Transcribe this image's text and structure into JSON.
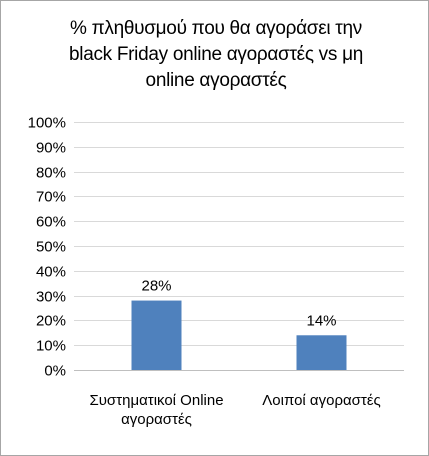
{
  "chart_data": {
    "type": "bar",
    "title_lines": [
      "% πληθυσμού που θα αγοράσει την",
      "black Friday online αγοραστές vs μη",
      "online αγοραστές"
    ],
    "categories": [
      [
        "Συστηματικοί Online",
        "αγοραστές"
      ],
      [
        "Λοιποί αγοραστές"
      ]
    ],
    "values": [
      28,
      14
    ],
    "data_labels": [
      "28%",
      "14%"
    ],
    "ylim": [
      0,
      100
    ],
    "yticks": [
      0,
      10,
      20,
      30,
      40,
      50,
      60,
      70,
      80,
      90,
      100
    ],
    "ytick_labels": [
      "0%",
      "10%",
      "20%",
      "30%",
      "40%",
      "50%",
      "60%",
      "70%",
      "80%",
      "90%",
      "100%"
    ],
    "grid": true,
    "bar_color": "#4f81bd",
    "grid_color": "#d9d9d9",
    "axis_color": "#bfbfbf"
  }
}
